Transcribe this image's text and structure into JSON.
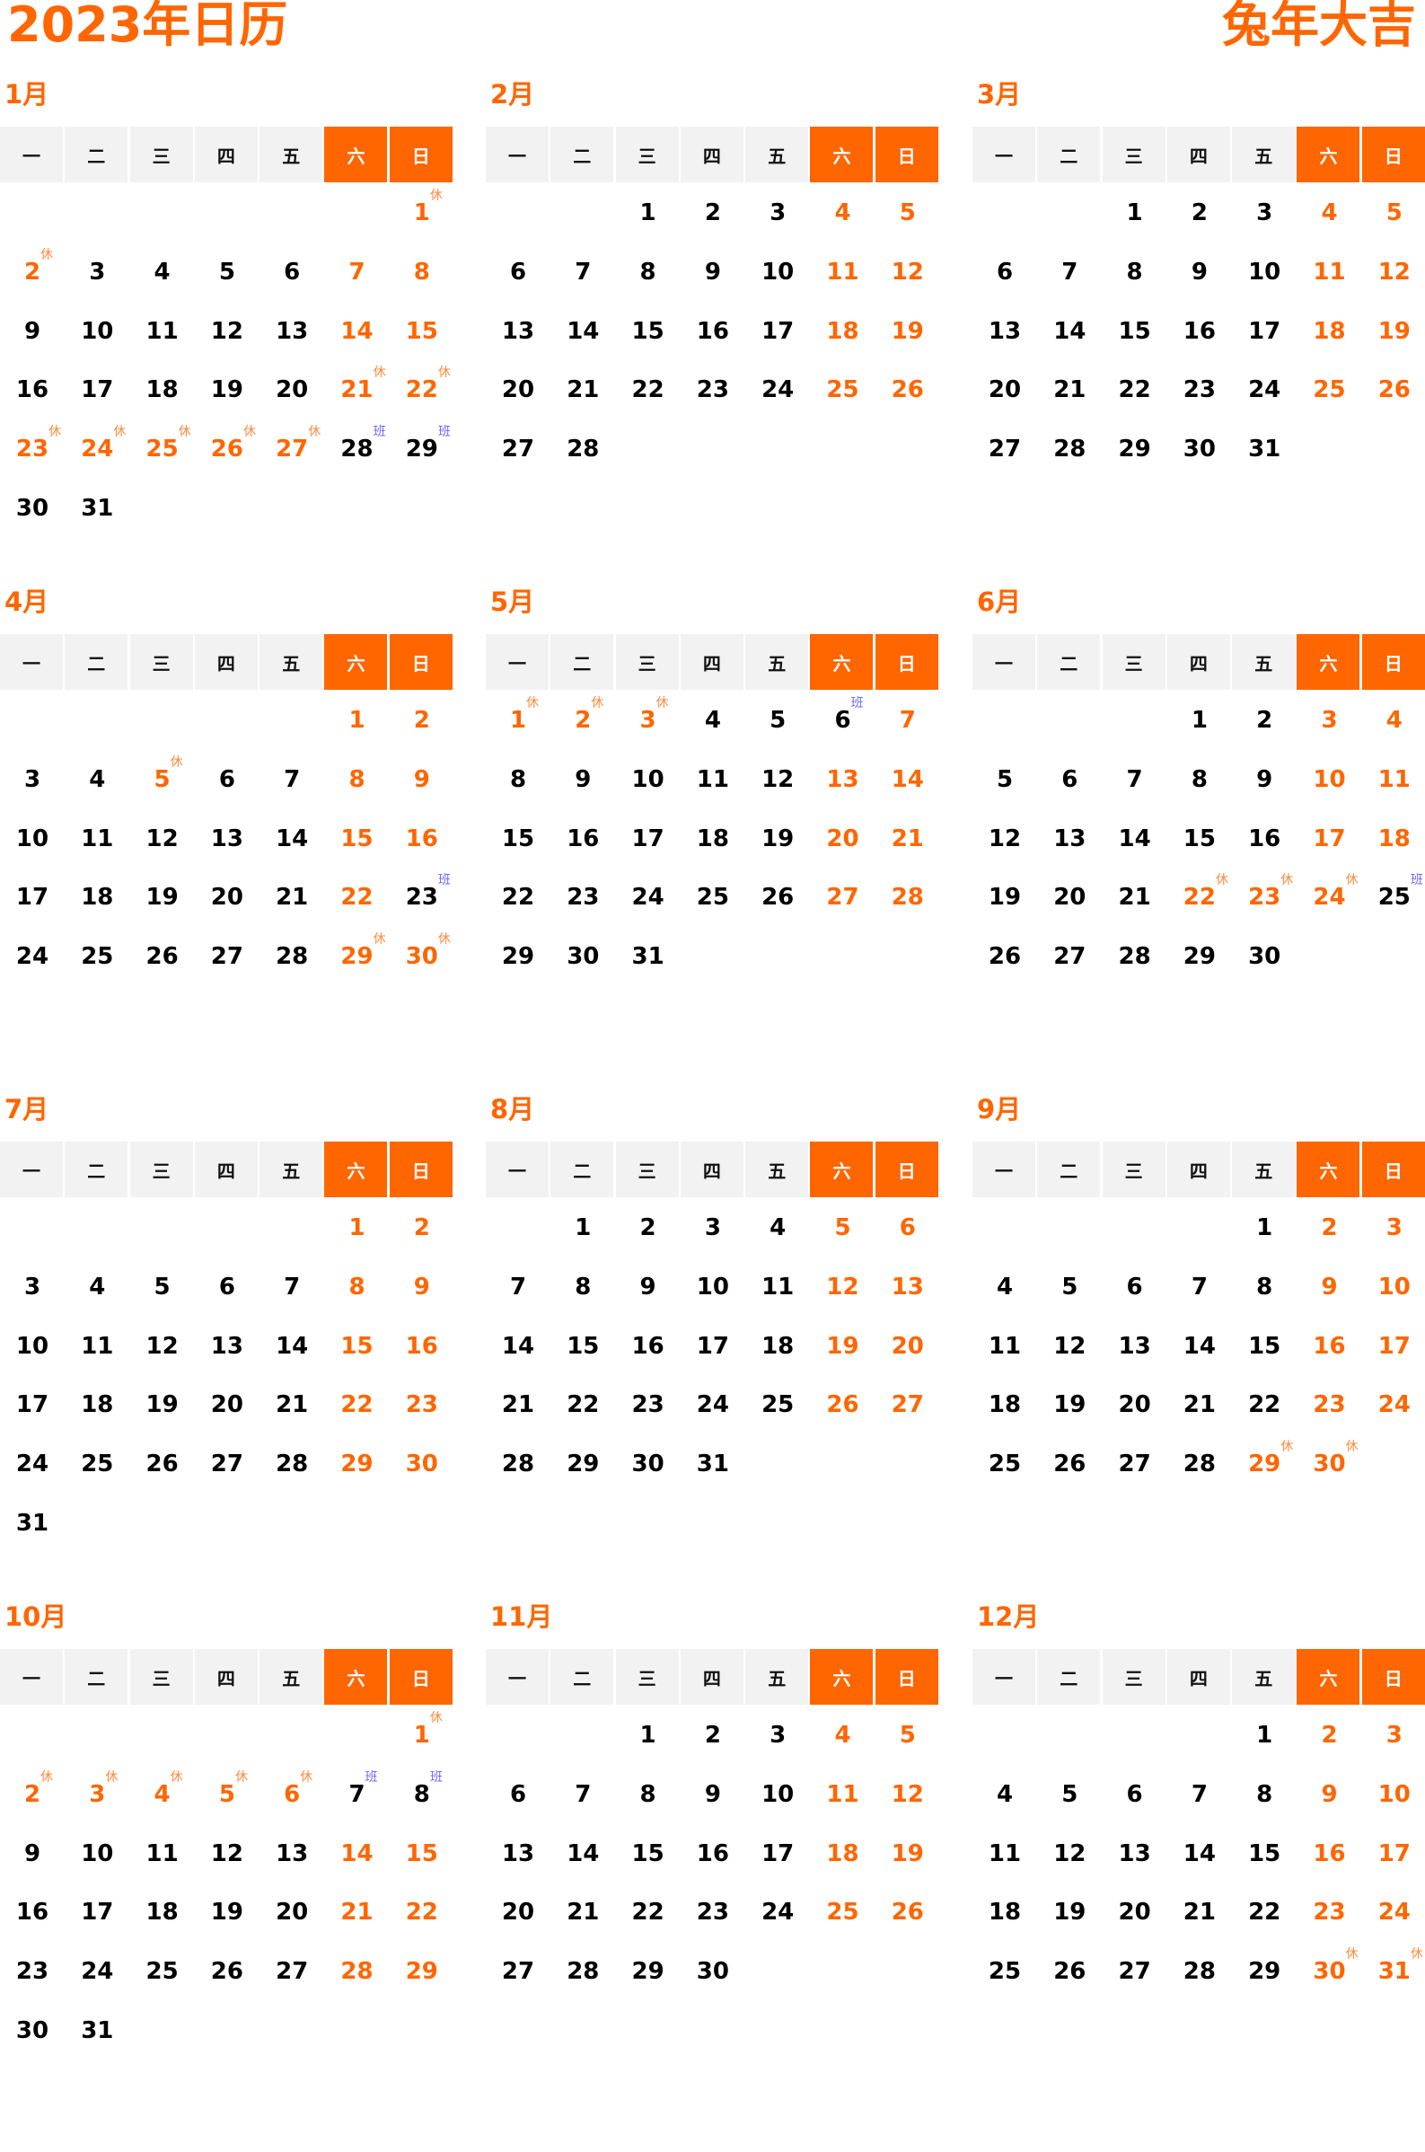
{
  "header": {
    "title": "2023年日历",
    "slogan": "兔年大吉"
  },
  "colors": {
    "accent": "#ff6600",
    "header_bg": "#f2f2f2",
    "rest_mark": "#ff8a3d",
    "work_mark": "#6a6aff"
  },
  "weekdays": [
    "一",
    "二",
    "三",
    "四",
    "五",
    "六",
    "日"
  ],
  "mark_labels": {
    "rest": "休",
    "work": "班"
  },
  "months": [
    {
      "label": "1月",
      "first_weekday": 7,
      "days": 31,
      "marks": {
        "1": "rest",
        "2": "rest",
        "21": "rest",
        "22": "rest",
        "23": "rest",
        "24": "rest",
        "25": "rest",
        "26": "rest",
        "27": "rest",
        "28": "work",
        "29": "work"
      }
    },
    {
      "label": "2月",
      "first_weekday": 3,
      "days": 28,
      "marks": {}
    },
    {
      "label": "3月",
      "first_weekday": 3,
      "days": 31,
      "marks": {}
    },
    {
      "label": "4月",
      "first_weekday": 6,
      "days": 30,
      "marks": {
        "5": "rest",
        "23": "work",
        "29": "rest",
        "30": "rest"
      }
    },
    {
      "label": "5月",
      "first_weekday": 1,
      "days": 31,
      "marks": {
        "1": "rest",
        "2": "rest",
        "3": "rest",
        "6": "work"
      }
    },
    {
      "label": "6月",
      "first_weekday": 4,
      "days": 30,
      "marks": {
        "22": "rest",
        "23": "rest",
        "24": "rest",
        "25": "work"
      }
    },
    {
      "label": "7月",
      "first_weekday": 6,
      "days": 31,
      "marks": {}
    },
    {
      "label": "8月",
      "first_weekday": 2,
      "days": 31,
      "marks": {}
    },
    {
      "label": "9月",
      "first_weekday": 5,
      "days": 30,
      "marks": {
        "29": "rest",
        "30": "rest"
      }
    },
    {
      "label": "10月",
      "first_weekday": 7,
      "days": 31,
      "marks": {
        "1": "rest",
        "2": "rest",
        "3": "rest",
        "4": "rest",
        "5": "rest",
        "6": "rest",
        "7": "work",
        "8": "work"
      }
    },
    {
      "label": "11月",
      "first_weekday": 3,
      "days": 30,
      "marks": {}
    },
    {
      "label": "12月",
      "first_weekday": 5,
      "days": 31,
      "marks": {
        "30": "rest",
        "31": "rest"
      }
    }
  ]
}
